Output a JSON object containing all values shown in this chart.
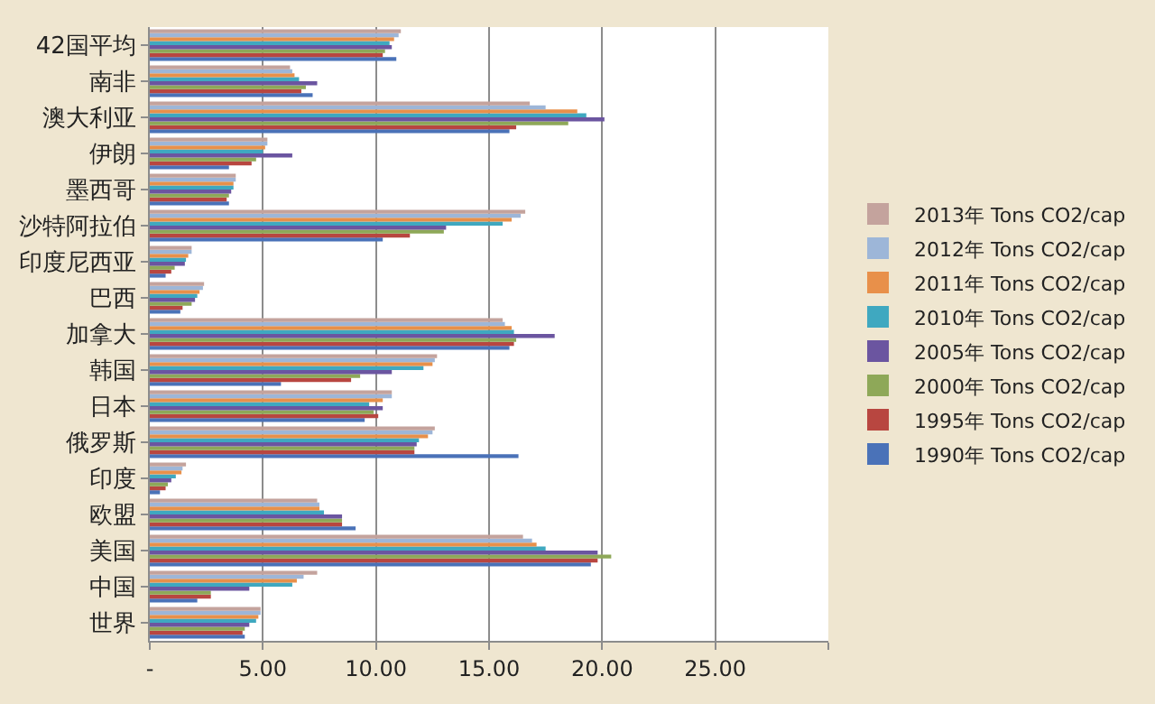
{
  "chart_data": {
    "type": "bar",
    "orientation": "horizontal",
    "categories": [
      "42国平均",
      "南非",
      "澳大利亚",
      "伊朗",
      "墨西哥",
      "沙特阿拉伯",
      "印度尼西亚",
      "巴西",
      "加拿大",
      "韩国",
      "日本",
      "俄罗斯",
      "印度",
      "欧盟",
      "美国",
      "中国",
      "世界"
    ],
    "series": [
      {
        "name": "1990年 Tons CO2/cap",
        "color": "#4a72b8",
        "values": [
          10.9,
          7.2,
          15.9,
          3.5,
          3.5,
          10.3,
          0.7,
          1.35,
          15.9,
          5.8,
          9.5,
          16.3,
          0.45,
          9.1,
          19.5,
          2.1,
          4.2
        ]
      },
      {
        "name": "1995年 Tons CO2/cap",
        "color": "#b84640",
        "values": [
          10.3,
          6.7,
          16.2,
          4.5,
          3.4,
          11.5,
          0.95,
          1.45,
          16.1,
          8.9,
          10.1,
          11.7,
          0.7,
          8.5,
          19.8,
          2.7,
          4.1
        ]
      },
      {
        "name": "2000年 Tons CO2/cap",
        "color": "#8ea858",
        "values": [
          10.4,
          6.9,
          18.5,
          4.7,
          3.5,
          13.0,
          1.1,
          1.85,
          16.2,
          9.3,
          9.9,
          11.7,
          0.8,
          8.5,
          20.4,
          2.7,
          4.2
        ]
      },
      {
        "name": "2005年 Tons CO2/cap",
        "color": "#6b55a0",
        "values": [
          10.7,
          7.4,
          20.1,
          6.3,
          3.6,
          13.1,
          1.55,
          2.0,
          17.9,
          10.7,
          10.3,
          11.8,
          0.95,
          8.5,
          19.8,
          4.4,
          4.4
        ]
      },
      {
        "name": "2010年 Tons CO2/cap",
        "color": "#3fa8c0",
        "values": [
          10.6,
          6.6,
          19.3,
          5.0,
          3.7,
          15.6,
          1.6,
          2.1,
          16.1,
          12.1,
          9.7,
          11.9,
          1.15,
          7.7,
          17.5,
          6.3,
          4.7
        ]
      },
      {
        "name": "2011年 Tons CO2/cap",
        "color": "#e8904a",
        "values": [
          10.8,
          6.4,
          18.9,
          5.1,
          3.7,
          16.0,
          1.7,
          2.2,
          16.0,
          12.5,
          10.3,
          12.3,
          1.4,
          7.5,
          17.1,
          6.5,
          4.8
        ]
      },
      {
        "name": "2012年 Tons CO2/cap",
        "color": "#9db6d8",
        "values": [
          11.0,
          6.3,
          17.5,
          5.2,
          3.8,
          16.4,
          1.85,
          2.35,
          15.7,
          12.6,
          10.7,
          12.5,
          1.45,
          7.5,
          16.9,
          6.8,
          4.9
        ]
      },
      {
        "name": "2013年 Tons CO2/cap",
        "color": "#c4a39d",
        "values": [
          11.1,
          6.2,
          16.8,
          5.2,
          3.8,
          16.6,
          1.85,
          2.4,
          15.6,
          12.7,
          10.7,
          12.6,
          1.6,
          7.4,
          16.5,
          7.4,
          4.9
        ]
      }
    ],
    "xlim": [
      0,
      30
    ],
    "xticks": [
      {
        "value": 0,
        "label": "-"
      },
      {
        "value": 5,
        "label": "5.00"
      },
      {
        "value": 10,
        "label": "10.00"
      },
      {
        "value": 15,
        "label": "15.00"
      },
      {
        "value": 20,
        "label": "20.00"
      },
      {
        "value": 25,
        "label": "25.00"
      },
      {
        "value": 30,
        "label": null
      }
    ],
    "grid": "x",
    "legend": "right"
  }
}
